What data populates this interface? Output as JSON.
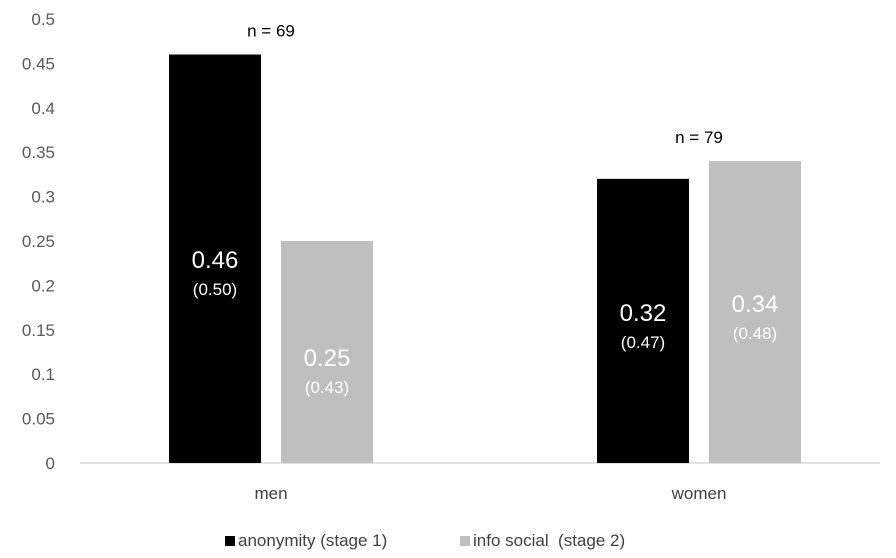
{
  "chart_data": {
    "type": "bar",
    "title": "",
    "xlabel": "",
    "ylabel": "",
    "ylim": [
      0,
      0.5
    ],
    "yticks": [
      0,
      0.05,
      0.1,
      0.15,
      0.2,
      0.25,
      0.3,
      0.35,
      0.4,
      0.45,
      0.5
    ],
    "ytick_labels": [
      "0",
      "0.05",
      "0.1",
      "0.15",
      "0.2",
      "0.25",
      "0.3",
      "0.35",
      "0.4",
      "0.45",
      "0.5"
    ],
    "grid": false,
    "legend_position": "bottom",
    "categories": [
      "men",
      "women"
    ],
    "group_annotations": [
      "n = 69",
      "n = 79"
    ],
    "series": [
      {
        "name": "anonymity (stage 1)",
        "color": "#000000",
        "label_color": "#ffffff",
        "values": [
          0.46,
          0.32
        ],
        "value_labels": [
          "0.46",
          "0.32"
        ],
        "sd_labels": [
          "(0.50)",
          "(0.47)"
        ]
      },
      {
        "name": "info social  (stage 2)",
        "color": "#bfbfbf",
        "label_color": "#ffffff",
        "values": [
          0.25,
          0.34
        ],
        "value_labels": [
          "0.25",
          "0.34"
        ],
        "sd_labels": [
          "(0.43)",
          "(0.48)"
        ]
      }
    ]
  }
}
